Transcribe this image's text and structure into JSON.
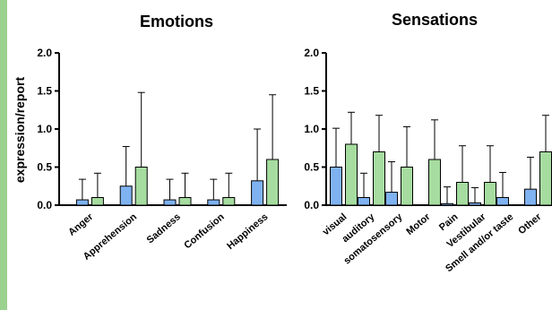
{
  "colors": {
    "series_1": "#7fb2f0",
    "series_2": "#a6dca0",
    "side_strip": "#9bd18f"
  },
  "chart_data": [
    {
      "type": "bar",
      "title": "Emotions",
      "ylabel": "expression/report",
      "ylim": [
        0,
        2.0
      ],
      "yticks": [
        "0.0",
        "0.5",
        "1.0",
        "1.5",
        "2.0"
      ],
      "error_bars": "upper only",
      "categories": [
        "Anger",
        "Apprehension",
        "Sadness",
        "Confusion",
        "Happiness"
      ],
      "series": [
        {
          "values": [
            0.07,
            0.25,
            0.07,
            0.07,
            0.32
          ],
          "errors": [
            0.27,
            0.52,
            0.27,
            0.27,
            0.68
          ],
          "color": "#7fb2f0"
        },
        {
          "values": [
            0.1,
            0.5,
            0.1,
            0.1,
            0.6
          ],
          "errors": [
            0.32,
            0.98,
            0.32,
            0.32,
            0.85
          ],
          "color": "#a6dca0"
        }
      ]
    },
    {
      "type": "bar",
      "title": "Sensations",
      "ylabel": "",
      "ylim": [
        0,
        2.0
      ],
      "yticks": [
        "0.0",
        "0.5",
        "1.0",
        "1.5",
        "2.0"
      ],
      "error_bars": "upper only",
      "categories": [
        "visual",
        "auditory",
        "somatosensory",
        "Motor",
        "Pain",
        "Vestibular",
        "Smell and/or taste",
        "Other"
      ],
      "series": [
        {
          "values": [
            0.5,
            0.1,
            0.17,
            0.0,
            0.02,
            0.03,
            0.1,
            0.21
          ],
          "errors": [
            0.51,
            0.32,
            0.4,
            0.0,
            0.22,
            0.2,
            0.33,
            0.42
          ],
          "color": "#7fb2f0"
        },
        {
          "values": [
            0.8,
            0.7,
            0.5,
            0.6,
            0.3,
            0.3,
            0.0,
            0.7
          ],
          "errors": [
            0.42,
            0.48,
            0.53,
            0.52,
            0.48,
            0.48,
            0.0,
            0.48
          ],
          "color": "#a6dca0"
        }
      ]
    }
  ]
}
